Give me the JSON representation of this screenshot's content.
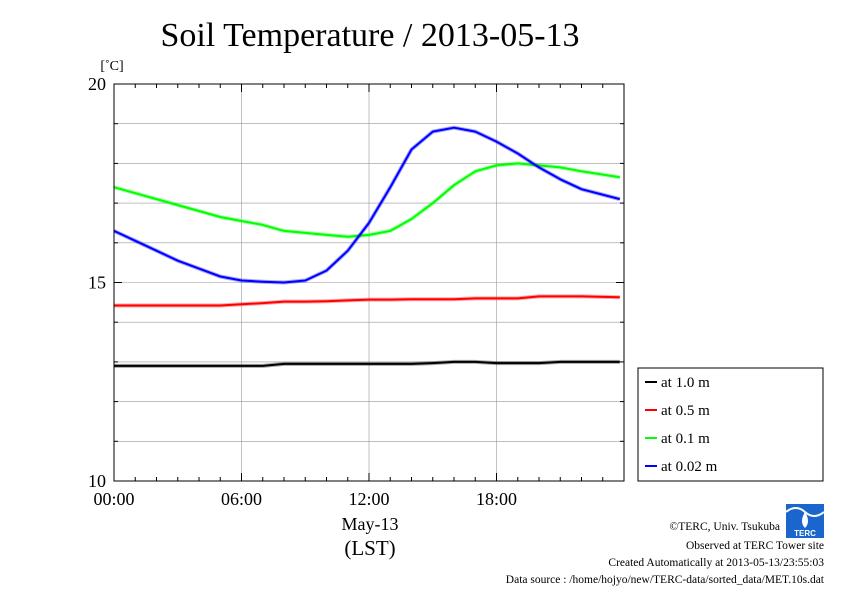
{
  "chart_data": {
    "type": "line",
    "title": "Soil Temperature / 2013-05-13",
    "unit": "[˚C]",
    "date_label": "May-13",
    "xlabel": "(LST)",
    "x_ticks": [
      "00:00",
      "06:00",
      "12:00",
      "18:00"
    ],
    "x_range_hours": [
      0,
      24
    ],
    "ylim": [
      10,
      20
    ],
    "y_ticks": [
      10,
      15,
      20
    ],
    "grid": true,
    "legend_position": "bottom-right outside",
    "x_hours": [
      0,
      1,
      2,
      3,
      4,
      5,
      6,
      7,
      8,
      9,
      10,
      11,
      12,
      13,
      14,
      15,
      16,
      17,
      18,
      19,
      20,
      21,
      22,
      23.8
    ],
    "series": [
      {
        "name": "at 1.0 m",
        "color": "#000000",
        "values": [
          12.9,
          12.9,
          12.9,
          12.9,
          12.9,
          12.9,
          12.9,
          12.9,
          12.95,
          12.95,
          12.95,
          12.95,
          12.95,
          12.95,
          12.95,
          12.97,
          13.0,
          13.0,
          12.97,
          12.97,
          12.97,
          13.0,
          13.0,
          13.0
        ]
      },
      {
        "name": "at 0.5 m",
        "color": "#ff0000",
        "values": [
          14.42,
          14.42,
          14.42,
          14.42,
          14.42,
          14.42,
          14.45,
          14.48,
          14.52,
          14.52,
          14.53,
          14.55,
          14.57,
          14.57,
          14.58,
          14.58,
          14.58,
          14.6,
          14.6,
          14.6,
          14.65,
          14.65,
          14.65,
          14.63
        ]
      },
      {
        "name": "at 0.1 m",
        "color": "#00ff00",
        "values": [
          17.4,
          17.25,
          17.1,
          16.95,
          16.8,
          16.65,
          16.55,
          16.45,
          16.3,
          16.25,
          16.2,
          16.15,
          16.2,
          16.3,
          16.6,
          17.0,
          17.45,
          17.8,
          17.95,
          18.0,
          17.95,
          17.9,
          17.8,
          17.65
        ]
      },
      {
        "name": "at 0.02 m",
        "color": "#0000ff",
        "values": [
          16.3,
          16.05,
          15.8,
          15.55,
          15.35,
          15.15,
          15.05,
          15.02,
          15.0,
          15.05,
          15.3,
          15.8,
          16.5,
          17.4,
          18.35,
          18.8,
          18.9,
          18.8,
          18.55,
          18.25,
          17.9,
          17.6,
          17.35,
          17.1
        ]
      }
    ]
  },
  "footer": {
    "copyright": "©TERC, Univ. Tsukuba",
    "observed": "Observed at TERC Tower site",
    "created": "Created Automatically at 2013-05-13/23:55:03",
    "source": "Data source : /home/hojyo/new/TERC-data/sorted_data/MET.10s.dat",
    "logo_text": "TERC"
  }
}
